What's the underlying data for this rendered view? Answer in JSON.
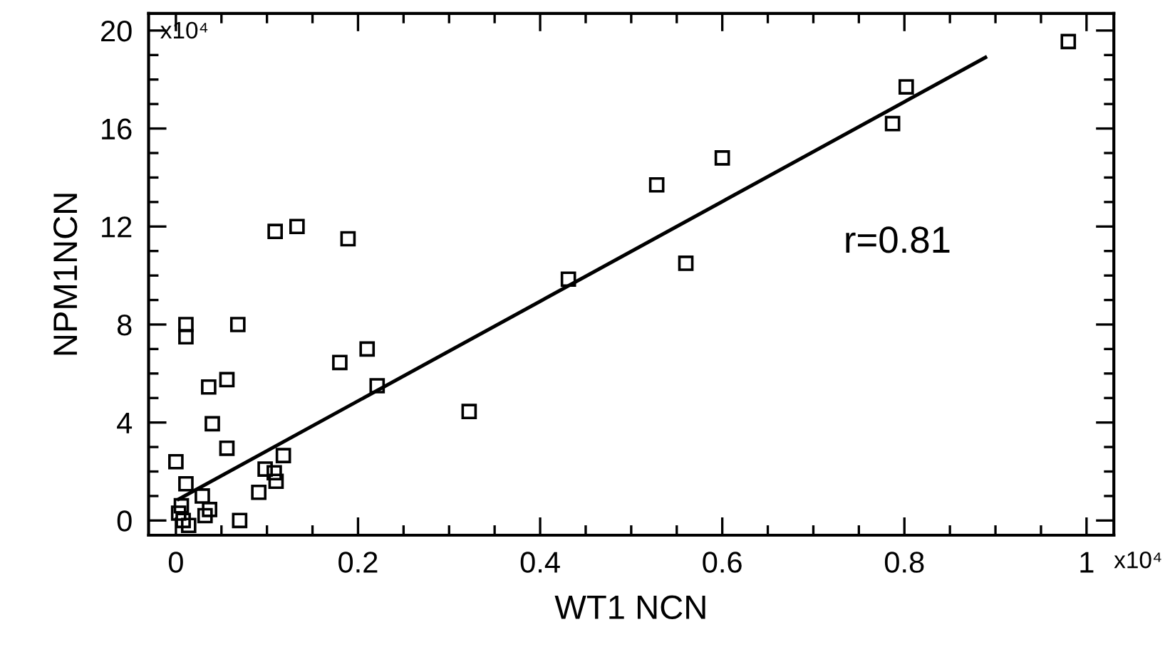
{
  "chart_data": {
    "type": "scatter",
    "xlabel": "WT1 NCN",
    "ylabel": "NPM1NCN",
    "xlim": [
      -0.03,
      1.03
    ],
    "ylim": [
      -0.6,
      20.7
    ],
    "xticks": [
      0,
      0.2,
      0.4,
      0.6,
      0.8,
      1
    ],
    "yticks": [
      0,
      4,
      8,
      12,
      16,
      20
    ],
    "marker": "square",
    "grid": false,
    "legend": false,
    "annotations": [
      "x10⁴",
      "x10⁴",
      "r=0.81"
    ],
    "series": [
      {
        "color": "#000000",
        "x": [
          0.109,
          0.133,
          0.189,
          0.011,
          0.011,
          0.068,
          0.18,
          0.21,
          0.221,
          0.036,
          0.056,
          0.04,
          0.056,
          0.0,
          0.011,
          0.029,
          0.091,
          0.098,
          0.108,
          0.11,
          0.118,
          0.322,
          0.07,
          0.037,
          0.032,
          0.003,
          0.008,
          0.014,
          0.006,
          0.431,
          0.528,
          0.6,
          0.56,
          0.802,
          0.787,
          0.98
        ],
        "values": [
          11.8,
          12.0,
          11.5,
          8.0,
          7.5,
          8.0,
          6.45,
          7.0,
          5.5,
          5.45,
          5.75,
          3.95,
          2.95,
          2.4,
          1.5,
          1.0,
          1.15,
          2.1,
          1.95,
          1.6,
          2.65,
          4.45,
          0.0,
          0.45,
          0.2,
          0.3,
          0.0,
          -0.2,
          0.6,
          9.85,
          13.7,
          14.8,
          10.5,
          17.7,
          16.2,
          19.55
        ]
      },
      {
        "type": "line",
        "color": "#000000",
        "marker": "none",
        "x": [
          0.003,
          0.889
        ],
        "values": [
          0.87,
          18.9
        ]
      }
    ]
  }
}
